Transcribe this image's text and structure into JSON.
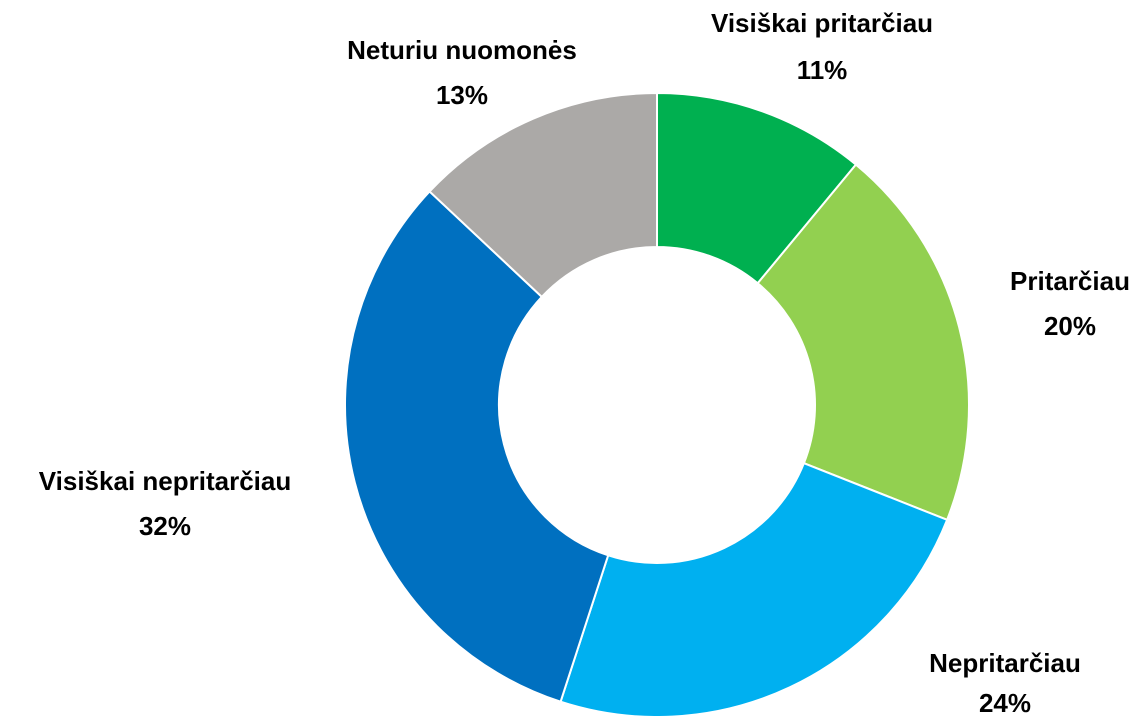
{
  "chart_data": {
    "type": "donut",
    "categories": [
      "Visiškai pritarčiau",
      "Pritarčiau",
      "Nepritarčiau",
      "Visiškai nepritarčiau",
      "Neturiu nuomonės"
    ],
    "values": [
      11,
      20,
      24,
      32,
      13
    ],
    "value_labels": [
      "11%",
      "20%",
      "24%",
      "32%",
      "13%"
    ],
    "colors": [
      "#00b050",
      "#92d050",
      "#00b0f0",
      "#0070c0",
      "#aba9a7"
    ]
  }
}
